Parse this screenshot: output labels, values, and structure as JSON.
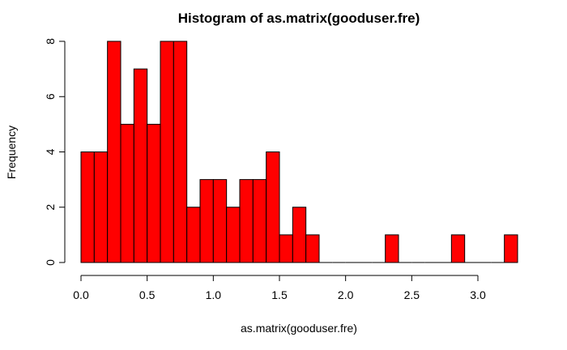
{
  "chart_data": {
    "type": "bar",
    "title": "Histogram of as.matrix(gooduser.fre)",
    "xlabel": "as.matrix(gooduser.fre)",
    "ylabel": "Frequency",
    "bin_width": 0.1,
    "bin_starts": [
      0.0,
      0.1,
      0.2,
      0.3,
      0.4,
      0.5,
      0.6,
      0.7,
      0.8,
      0.9,
      1.0,
      1.1,
      1.2,
      1.3,
      1.4,
      1.5,
      1.6,
      1.7,
      1.8,
      1.9,
      2.0,
      2.1,
      2.2,
      2.3,
      2.4,
      2.5,
      2.6,
      2.7,
      2.8,
      2.9,
      3.0,
      3.1,
      3.2
    ],
    "values": [
      4,
      4,
      8,
      5,
      7,
      5,
      8,
      8,
      2,
      3,
      3,
      2,
      3,
      3,
      4,
      1,
      2,
      1,
      0,
      0,
      0,
      0,
      0,
      1,
      0,
      0,
      0,
      0,
      1,
      0,
      0,
      0,
      1
    ],
    "xlim": [
      0,
      3.3
    ],
    "ylim": [
      0,
      8
    ],
    "x_ticks": [
      "0.0",
      "0.5",
      "1.0",
      "1.5",
      "2.0",
      "2.5",
      "3.0"
    ],
    "y_ticks": [
      "0",
      "2",
      "4",
      "6",
      "8"
    ],
    "colors": {
      "bar_fill": "#ff0000",
      "bar_stroke": "#000000"
    },
    "grid": false
  }
}
